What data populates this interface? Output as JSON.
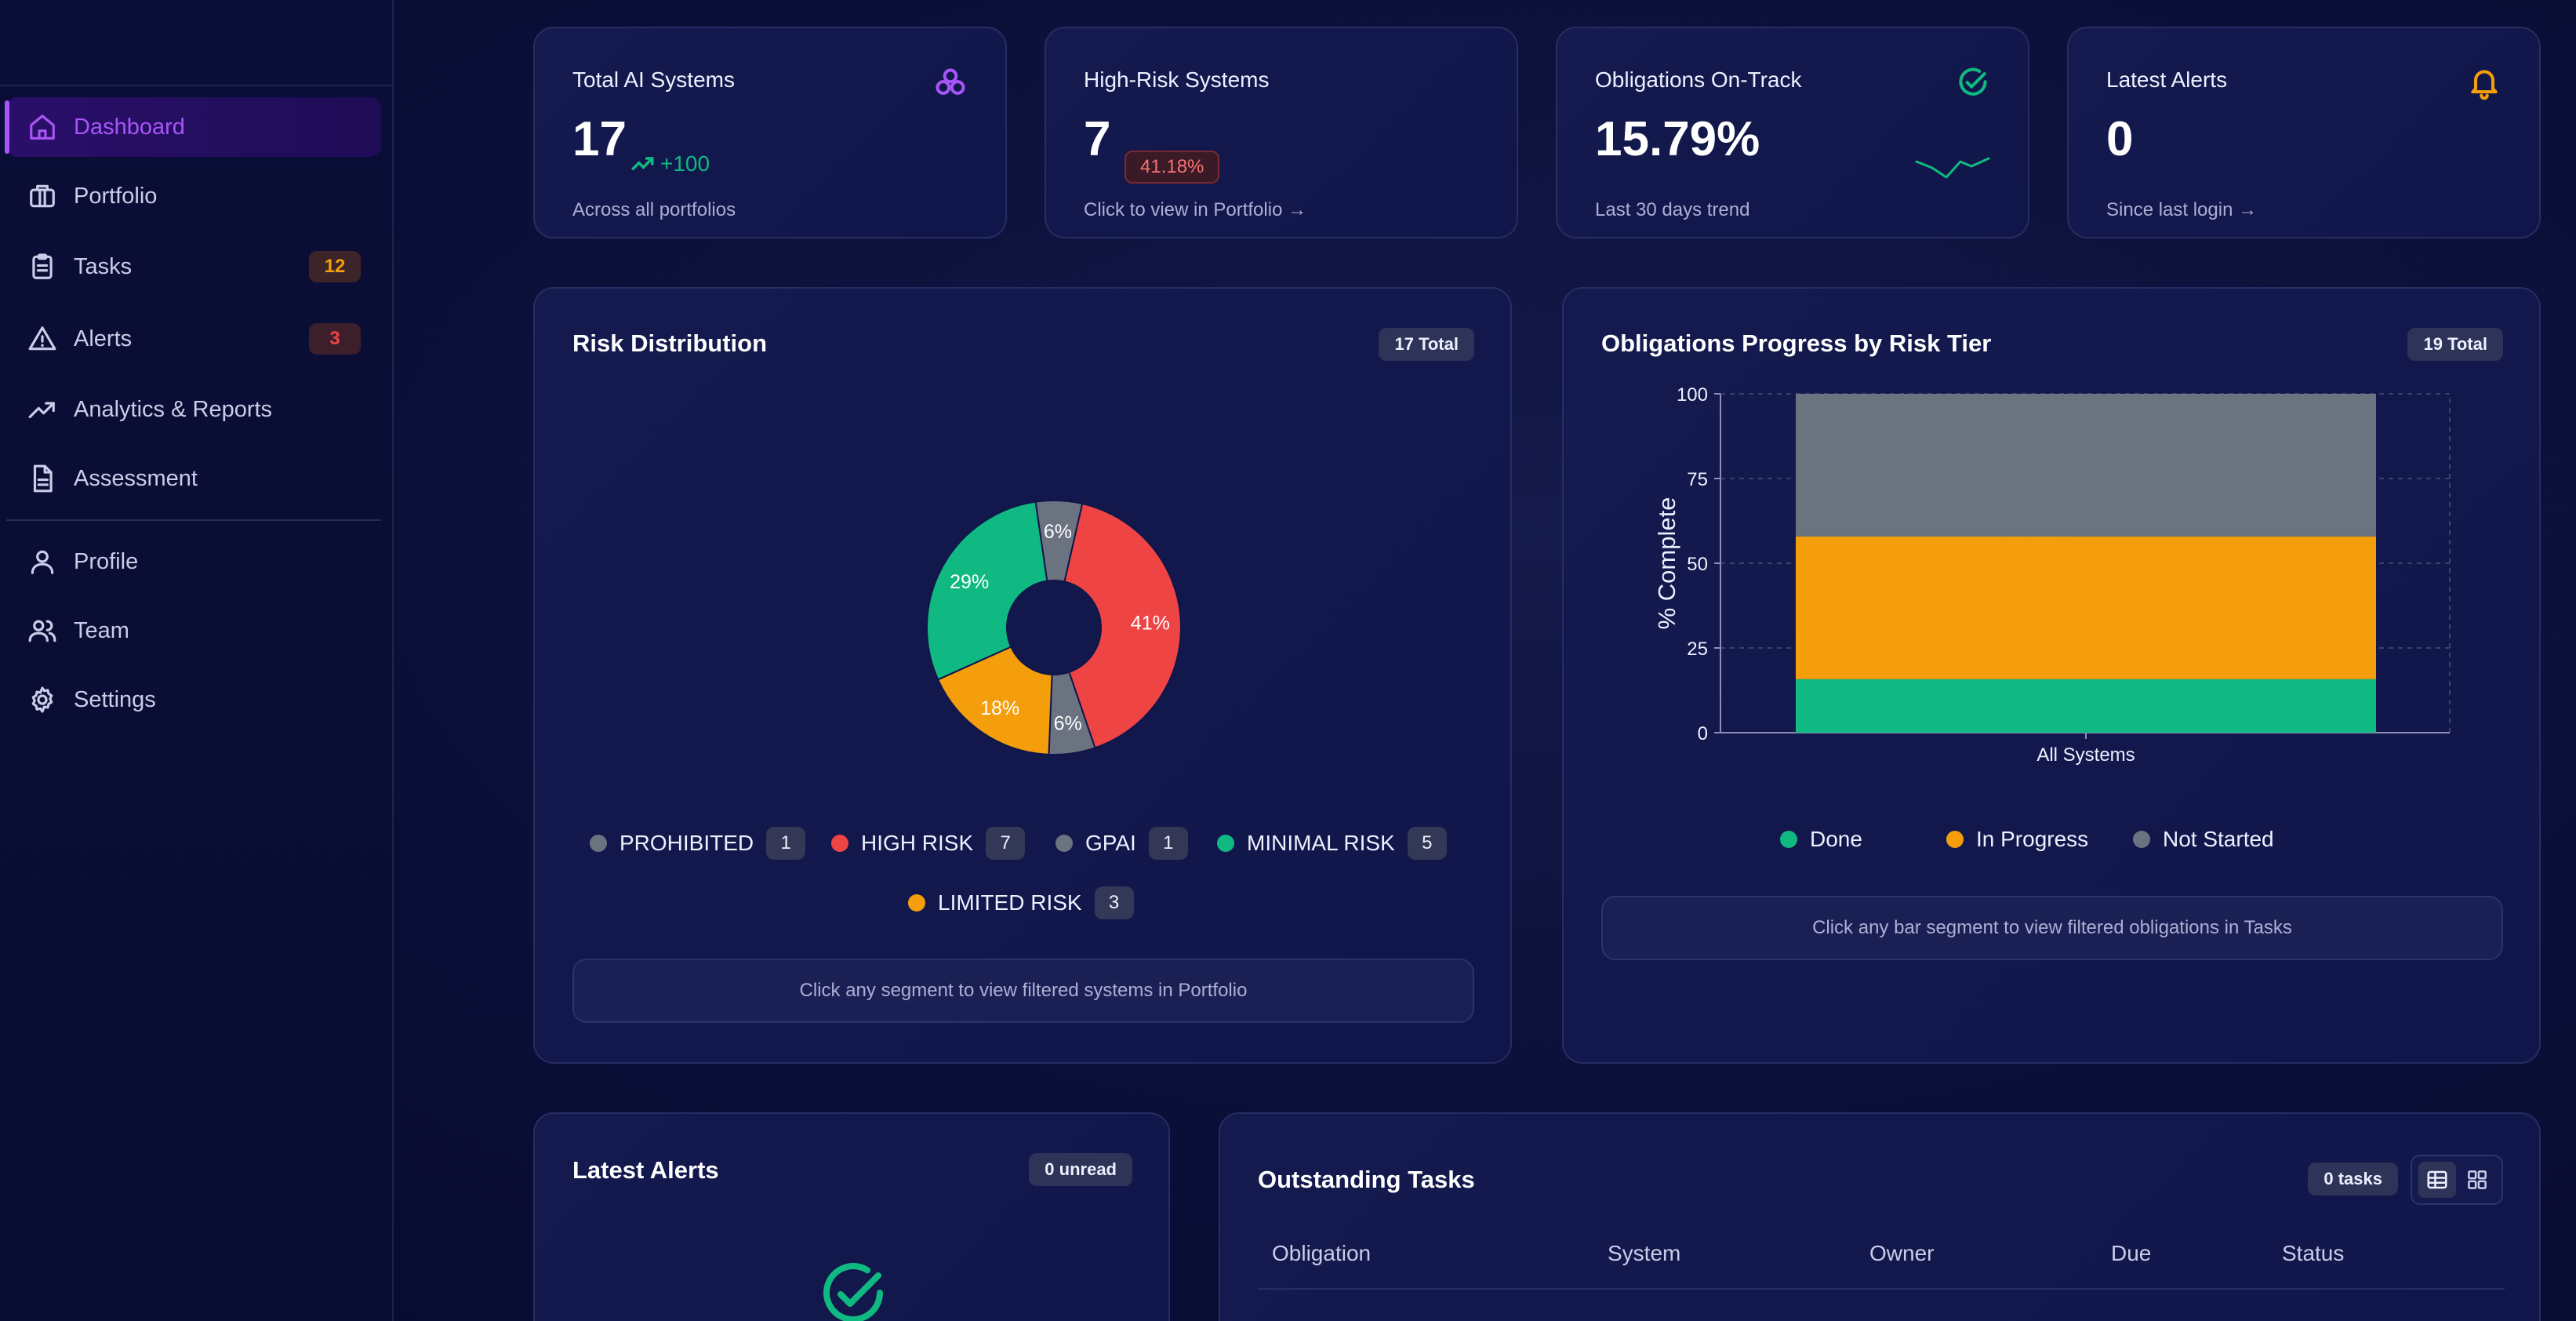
{
  "sidebar": {
    "items": [
      {
        "label": "Dashboard",
        "icon": "home-icon",
        "active": true
      },
      {
        "label": "Portfolio",
        "icon": "briefcase-icon"
      },
      {
        "label": "Tasks",
        "icon": "clipboard-icon",
        "badge": "12"
      },
      {
        "label": "Alerts",
        "icon": "warning-icon",
        "badge": "3"
      },
      {
        "label": "Analytics & Reports",
        "icon": "trending-up-icon"
      },
      {
        "label": "Assessment",
        "icon": "document-icon"
      },
      {
        "label": "Profile",
        "icon": "user-icon"
      },
      {
        "label": "Team",
        "icon": "users-icon"
      },
      {
        "label": "Settings",
        "icon": "gear-icon"
      }
    ]
  },
  "kpis": {
    "total_ai": {
      "title": "Total AI Systems",
      "value": "17",
      "trend": "+100",
      "sub": "Across all portfolios",
      "icon": "network-icon"
    },
    "high_risk": {
      "title": "High-Risk Systems",
      "value": "7",
      "badge": "41.18%",
      "sub": "Click to view in Portfolio →"
    },
    "obligations": {
      "title": "Obligations On-Track",
      "value": "15.79%",
      "sub": "Last 30 days trend",
      "icon": "check-circle-icon"
    },
    "alerts": {
      "title": "Latest Alerts",
      "value": "0",
      "sub": "Since last login →",
      "icon": "bell-icon"
    }
  },
  "risk_distribution": {
    "title": "Risk Distribution",
    "total_label": "17 Total",
    "hint": "Click any segment to view filtered systems in Portfolio",
    "legend": [
      {
        "label": "PROHIBITED",
        "count": "1",
        "color": "#6b7280"
      },
      {
        "label": "HIGH RISK",
        "count": "7",
        "color": "#ef4444"
      },
      {
        "label": "GPAI",
        "count": "1",
        "color": "#6b7280"
      },
      {
        "label": "MINIMAL RISK",
        "count": "5",
        "color": "#10b981"
      },
      {
        "label": "LIMITED RISK",
        "count": "3",
        "color": "#f59e0b"
      }
    ]
  },
  "obligations_progress": {
    "title": "Obligations Progress by Risk Tier",
    "total_label": "19 Total",
    "hint": "Click any bar segment to view filtered obligations in Tasks",
    "legend": [
      {
        "label": "Done",
        "color": "#10b981"
      },
      {
        "label": "In Progress",
        "color": "#f59e0b"
      },
      {
        "label": "Not Started",
        "color": "#6b7280"
      }
    ]
  },
  "chart_data": [
    {
      "type": "pie",
      "donut": true,
      "slices": [
        {
          "label": "HIGH RISK",
          "value": 7,
          "pct_label": "41%",
          "color": "#ef4444"
        },
        {
          "label": "GPAI",
          "value": 1,
          "pct_label": "6%",
          "color": "#6b7280"
        },
        {
          "label": "LIMITED RISK",
          "value": 3,
          "pct_label": "18%",
          "color": "#f59e0b"
        },
        {
          "label": "MINIMAL RISK",
          "value": 5,
          "pct_label": "29%",
          "color": "#10b981"
        },
        {
          "label": "PROHIBITED",
          "value": 1,
          "pct_label": "6%",
          "color": "#6b7280"
        }
      ]
    },
    {
      "type": "bar",
      "stacked": true,
      "categories": [
        "All Systems"
      ],
      "series": [
        {
          "name": "Done",
          "values": [
            15.79
          ],
          "color": "#10b981"
        },
        {
          "name": "In Progress",
          "values": [
            42.11
          ],
          "color": "#f59e0b"
        },
        {
          "name": "Not Started",
          "values": [
            42.1
          ],
          "color": "#6b7280"
        }
      ],
      "ylabel": "% Complete",
      "ylim": [
        0,
        100
      ],
      "yticks": [
        "0",
        "25",
        "50",
        "75",
        "100"
      ],
      "grid": true
    }
  ],
  "latest_alerts": {
    "title": "Latest Alerts",
    "unread_label": "0 unread"
  },
  "outstanding_tasks": {
    "title": "Outstanding Tasks",
    "count_label": "0 tasks",
    "columns": [
      "Obligation",
      "System",
      "Owner",
      "Due",
      "Status"
    ]
  }
}
